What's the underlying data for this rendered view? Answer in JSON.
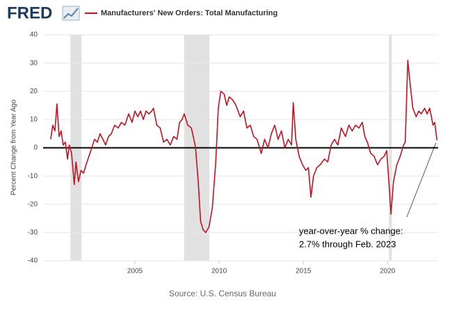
{
  "brand": "FRED",
  "chart_data": {
    "type": "line",
    "series": [
      {
        "name": "Manufacturers' New Orders: Total Manufacturing",
        "color": "#c1121f",
        "x": [
          2000.0,
          2000.12,
          2000.25,
          2000.37,
          2000.5,
          2000.62,
          2000.74,
          2000.87,
          2001.0,
          2001.1,
          2001.24,
          2001.4,
          2001.5,
          2001.65,
          2001.8,
          2001.95,
          2002.1,
          2002.27,
          2002.44,
          2002.6,
          2002.77,
          2002.93,
          2003.1,
          2003.26,
          2003.43,
          2003.6,
          2003.8,
          2004.0,
          2004.2,
          2004.4,
          2004.63,
          2004.83,
          2005.0,
          2005.17,
          2005.33,
          2005.5,
          2005.66,
          2005.83,
          2006.0,
          2006.1,
          2006.3,
          2006.5,
          2006.7,
          2006.9,
          2007.1,
          2007.3,
          2007.5,
          2007.65,
          2007.8,
          2007.93,
          2008.14,
          2008.35,
          2008.5,
          2008.6,
          2008.76,
          2008.9,
          2009.05,
          2009.2,
          2009.4,
          2009.6,
          2009.8,
          2009.95,
          2010.1,
          2010.3,
          2010.45,
          2010.6,
          2010.8,
          2011.0,
          2011.25,
          2011.45,
          2011.65,
          2011.85,
          2012.05,
          2012.25,
          2012.5,
          2012.7,
          2012.9,
          2013.1,
          2013.3,
          2013.5,
          2013.7,
          2013.9,
          2014.1,
          2014.3,
          2014.4,
          2014.55,
          2014.75,
          2014.95,
          2015.15,
          2015.3,
          2015.45,
          2015.6,
          2015.8,
          2016.0,
          2016.25,
          2016.45,
          2016.65,
          2016.85,
          2017.05,
          2017.25,
          2017.5,
          2017.7,
          2017.9,
          2018.1,
          2018.3,
          2018.5,
          2018.65,
          2018.8,
          2019.0,
          2019.2,
          2019.4,
          2019.6,
          2019.8,
          2019.95,
          2020.1,
          2020.2,
          2020.35,
          2020.55,
          2020.75,
          2020.95,
          2021.05,
          2021.2,
          2021.35,
          2021.5,
          2021.7,
          2021.85,
          2022.0,
          2022.2,
          2022.35,
          2022.5,
          2022.7,
          2022.8,
          2022.93
        ],
        "values": [
          3,
          8,
          6,
          15.5,
          4,
          6,
          1,
          2,
          -4,
          1,
          -2,
          -13,
          -5,
          -12,
          -8,
          -9,
          -6,
          -3,
          0,
          3,
          2,
          5,
          3,
          1,
          4,
          5,
          8,
          7,
          9,
          8,
          12,
          9,
          13,
          11,
          13,
          10,
          13,
          12,
          13,
          14,
          8,
          7,
          2,
          3,
          1,
          4,
          3,
          9,
          10,
          12,
          8,
          7,
          3,
          0,
          -12,
          -26,
          -29,
          -30,
          -28,
          -21,
          -5,
          14,
          20,
          19,
          15,
          18,
          17,
          15,
          11,
          13,
          7,
          8,
          4,
          3,
          -2,
          3,
          0,
          5,
          8,
          3,
          6,
          0,
          3,
          1,
          16,
          3,
          -3,
          -6,
          -8,
          -7,
          -17.5,
          -10,
          -7,
          -6,
          -4,
          -5,
          1,
          3,
          1,
          7,
          4,
          8,
          6,
          8,
          7,
          9,
          4,
          2,
          -2,
          -3,
          -6,
          -4,
          -3,
          -1,
          -14,
          -23.5,
          -12,
          -6,
          -3,
          1,
          2,
          31,
          22,
          14,
          11,
          13,
          12,
          14,
          12,
          14,
          8,
          9,
          2.7
        ]
      }
    ],
    "recessions": [
      [
        2001.17,
        2001.83
      ],
      [
        2007.92,
        2009.42
      ],
      [
        2020.08,
        2020.25
      ]
    ],
    "hline": 0,
    "xlim": [
      1999.55,
      2023.0
    ],
    "xticks": [
      2005,
      2010,
      2015,
      2020
    ],
    "ylim": [
      -40,
      40
    ],
    "yticks": [
      -40,
      -30,
      -20,
      -10,
      0,
      10,
      20,
      30,
      40
    ],
    "ylabel": "Percent Change from Year Ago",
    "grid": true,
    "annotation": [
      "year-over-year % change:",
      "2.7% through Feb. 2023"
    ],
    "source": "Source: U.S. Census Bureau"
  }
}
